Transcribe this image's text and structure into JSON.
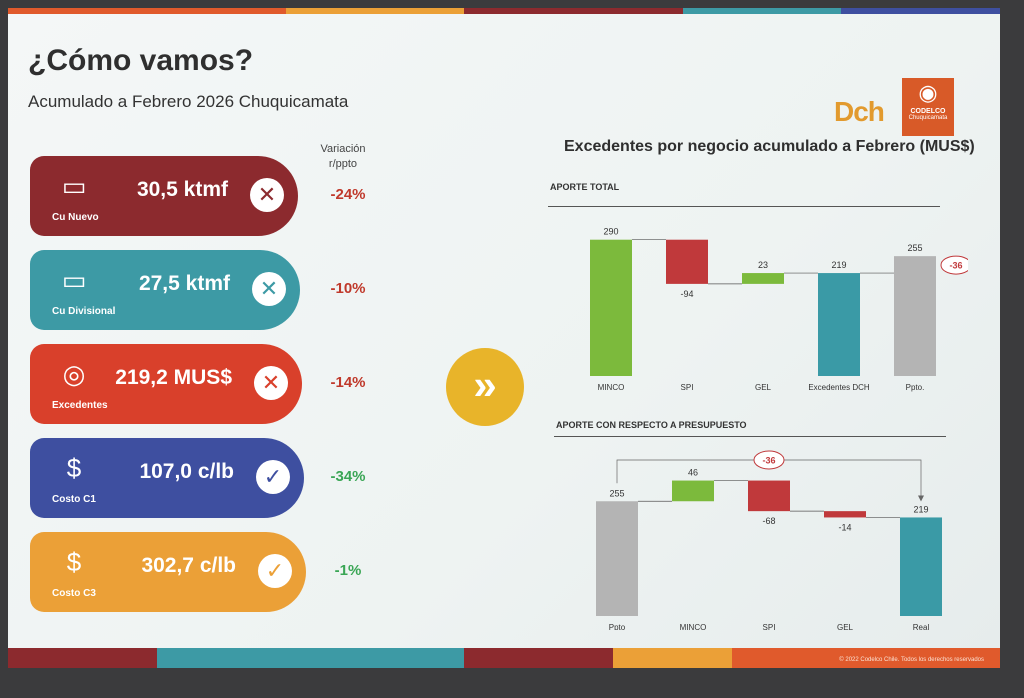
{
  "header": {
    "title": "¿Cómo vamos?",
    "subtitle": "Acumulado a Febrero 2026 Chuquicamata",
    "variation_header_line1": "Variación",
    "variation_header_line2": "r/ppto"
  },
  "kpis": [
    {
      "label": "Cu Nuevo",
      "value": "30,5 ktmf",
      "status": "miss",
      "variation": "-24%",
      "color": "#8c2a2e",
      "var_color": "#c0392b",
      "icon": "folder-icon"
    },
    {
      "label": "Cu Divisional",
      "value": "27,5 ktmf",
      "status": "miss",
      "variation": "-10%",
      "color": "#3d9aa5",
      "var_color": "#c0392b",
      "icon": "folder-icon"
    },
    {
      "label": "Excedentes",
      "value": "219,2 MUS$",
      "status": "miss",
      "variation": "-14%",
      "color": "#d9402b",
      "var_color": "#c0392b",
      "icon": "coins-icon"
    },
    {
      "label": "Costo C1",
      "value": "107,0 c/lb",
      "status": "ok",
      "variation": "-34%",
      "color": "#3e4fa0",
      "var_color": "#3aa655",
      "icon": "dollar-coin-icon"
    },
    {
      "label": "Costo C3",
      "value": "302,7 c/lb",
      "status": "ok",
      "variation": "-1%",
      "color": "#eba037",
      "var_color": "#3aa655",
      "icon": "dollar-coin-icon"
    }
  ],
  "logos": {
    "dch": "Dch",
    "codelco_name": "CODELCO",
    "codelco_sub": "Chuquicamata"
  },
  "footer": {
    "copyright": "© 2022 Codelco Chile. Todos los derechos reservados"
  },
  "colors": {
    "green": "#7cba3c",
    "red": "#c0393b",
    "teal": "#3a9aa6",
    "gray": "#b4b4b4"
  },
  "chart_data": [
    {
      "type": "bar",
      "subtype": "waterfall",
      "title": "Excedentes por negocio acumulado a Febrero (MUS$)",
      "section": "APORTE TOTAL",
      "categories": [
        "MINCO",
        "SPI",
        "GEL",
        "Excedentes DCH",
        "Ppto."
      ],
      "values": [
        290,
        -94,
        23,
        219,
        255
      ],
      "labels": [
        "290",
        "-94",
        "23",
        "219",
        "255"
      ],
      "bar_kinds": [
        "total",
        "delta",
        "delta",
        "total",
        "total"
      ],
      "bar_colors": [
        "#7cba3c",
        "#c0393b",
        "#7cba3c",
        "#3a9aa6",
        "#b4b4b4"
      ],
      "annotation": "-36"
    },
    {
      "type": "bar",
      "subtype": "waterfall",
      "section": "APORTE CON RESPECTO A PRESUPUESTO",
      "categories": [
        "Ppto",
        "MINCO",
        "SPI",
        "GEL",
        "Real"
      ],
      "values": [
        255,
        46,
        -68,
        -14,
        219
      ],
      "labels": [
        "255",
        "46",
        "-68",
        "-14",
        "219"
      ],
      "bar_kinds": [
        "total",
        "delta",
        "delta",
        "delta",
        "total"
      ],
      "bar_colors": [
        "#b4b4b4",
        "#7cba3c",
        "#c0393b",
        "#c0393b",
        "#3a9aa6"
      ],
      "annotation": "-36"
    }
  ]
}
